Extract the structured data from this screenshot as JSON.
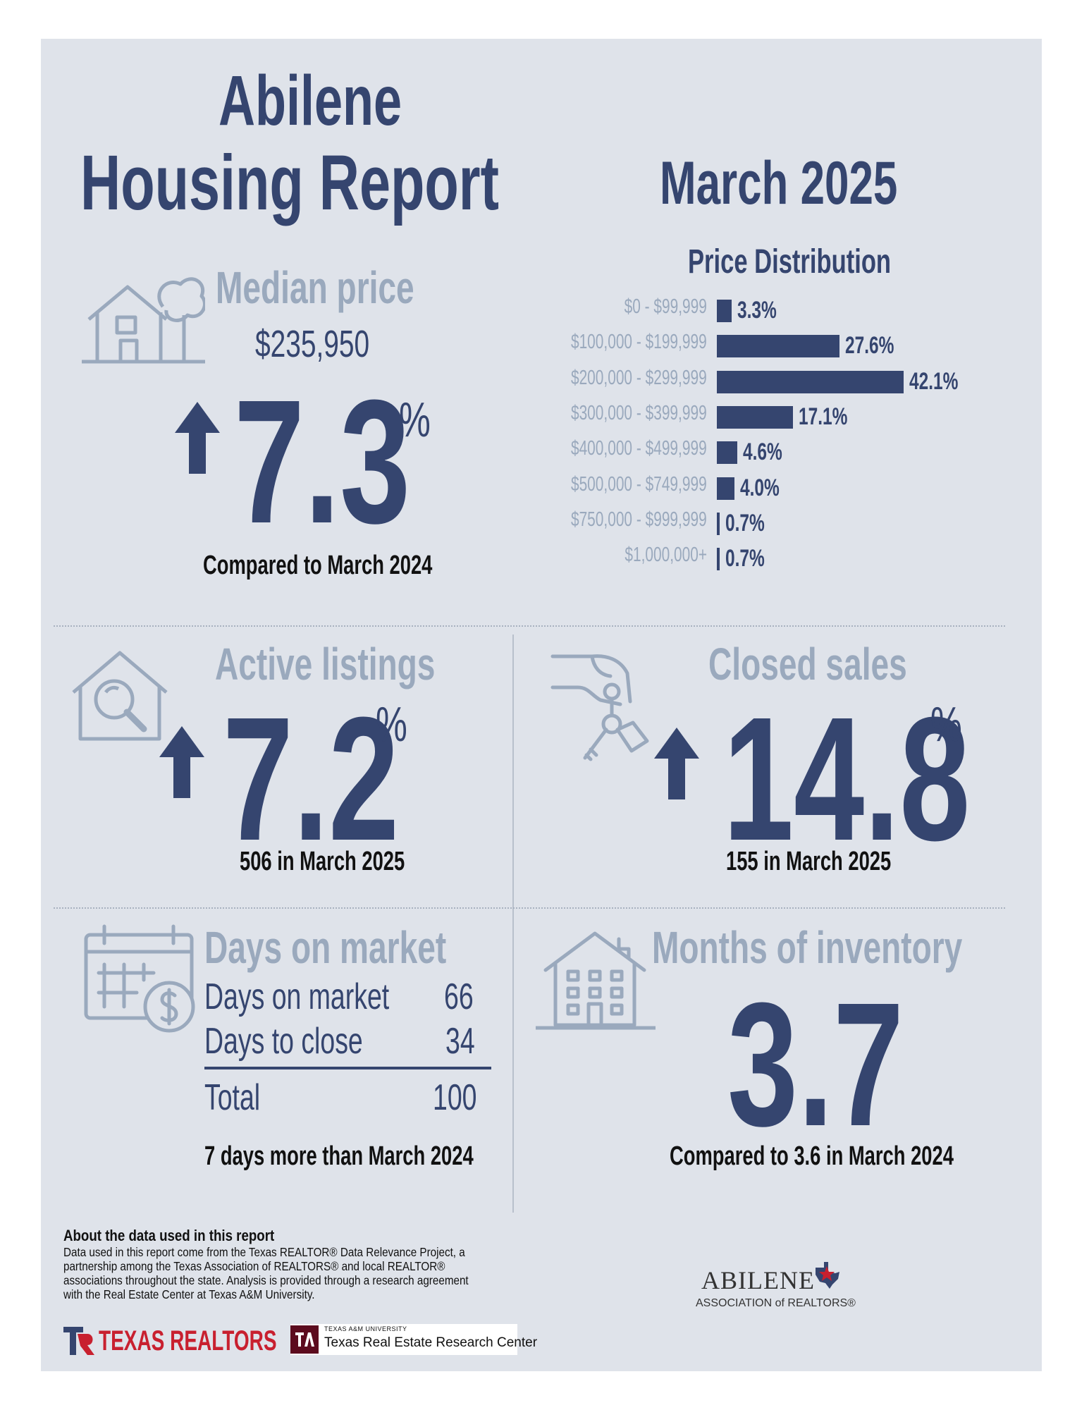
{
  "header": {
    "city": "Abilene",
    "title": "Housing Report",
    "period": "March 2025"
  },
  "median_price": {
    "heading": "Median price",
    "value": "$235,950",
    "change": "7.3",
    "pct": "%",
    "note": "Compared to March 2024"
  },
  "price_distribution": {
    "heading": "Price Distribution"
  },
  "chart_data": {
    "type": "bar",
    "orientation": "horizontal",
    "title": "Price Distribution",
    "categories": [
      "$0 - $99,999",
      "$100,000 - $199,999",
      "$200,000 - $299,999",
      "$300,000 - $399,999",
      "$400,000 - $499,999",
      "$500,000 - $749,999",
      "$750,000 - $999,999",
      "$1,000,000+"
    ],
    "values": [
      3.3,
      27.6,
      42.1,
      17.1,
      4.6,
      4.0,
      0.7,
      0.7
    ],
    "value_labels": [
      "3.3%",
      "27.6%",
      "42.1%",
      "17.1%",
      "4.6%",
      "4.0%",
      "0.7%",
      "0.7%"
    ],
    "unit": "%",
    "bar_color": "#35456f",
    "label_color": "#9aa9bd"
  },
  "active_listings": {
    "heading": "Active listings",
    "change": "7.2",
    "pct": "%",
    "note": "506 in March 2025"
  },
  "closed_sales": {
    "heading": "Closed sales",
    "change": "14.8",
    "pct": "%",
    "note": "155 in March 2025"
  },
  "days_on_market": {
    "heading": "Days on market",
    "rows": [
      {
        "label": "Days on market",
        "value": "66"
      },
      {
        "label": "Days to close",
        "value": "34"
      }
    ],
    "total_label": "Total",
    "total_value": "100",
    "note": "7 days more than March 2024"
  },
  "months_inventory": {
    "heading": "Months of inventory",
    "value": "3.7",
    "note": "Compared to 3.6 in March 2024"
  },
  "footer": {
    "about_title": "About the data used in this report",
    "about_text": "Data used in this report come from the Texas REALTOR® Data Relevance Project, a partnership among the Texas Association of REALTORS® and local REALTOR® associations throughout the state. Analysis is provided through a research agreement with the Real Estate Center at Texas A&M University.",
    "texas_realtors_logo": "TEXAS REALTORS",
    "tamu_small": "TEXAS A&M UNIVERSITY",
    "tamu_name": "Texas Real Estate Research Center",
    "abilene_logo_top": "ABILENE",
    "abilene_logo_bottom": "ASSOCIATION of REALTORS®"
  },
  "colors": {
    "navy": "#35456f",
    "steel": "#9aa9bd",
    "panel": "#dfe3ea",
    "tamu_maroon": "#5c0b1e",
    "texas_red": "#c8202f"
  }
}
